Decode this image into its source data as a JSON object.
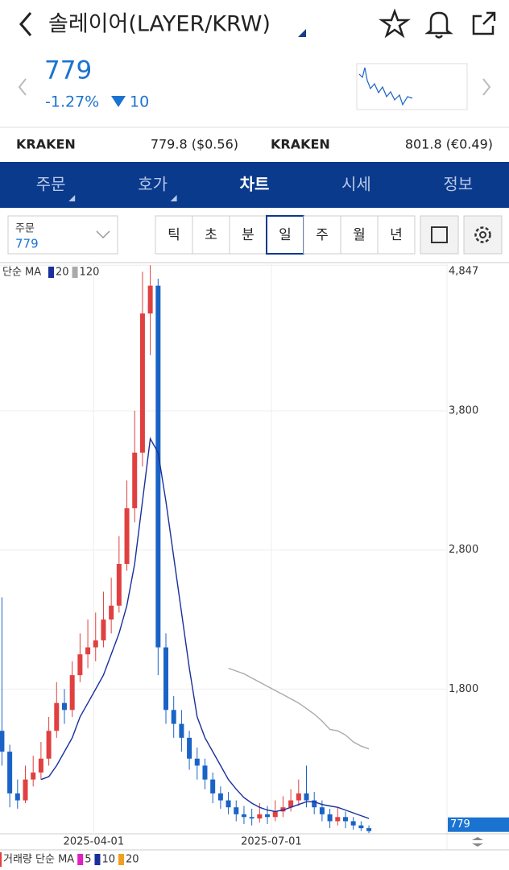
{
  "header": {
    "title": "솔레이어(LAYER/KRW)"
  },
  "quote": {
    "price": "779",
    "change_pct": "-1.27%",
    "change": "10"
  },
  "exchanges": [
    {
      "name": "KRAKEN",
      "price": "779.8 ($0.56)"
    },
    {
      "name": "KRAKEN",
      "price": "801.8 (€0.49)"
    }
  ],
  "tabs": [
    "주문",
    "호가",
    "차트",
    "시세",
    "정보"
  ],
  "toolbar": {
    "order_label": "주문",
    "order_value": "779",
    "periods": [
      "틱",
      "초",
      "분",
      "일",
      "주",
      "월",
      "년"
    ]
  },
  "chart_data": {
    "type": "candlestick",
    "x": [
      "2025-02-13",
      "2025-02-17",
      "2025-02-21",
      "2025-02-25",
      "2025-03-01",
      "2025-03-05",
      "2025-03-09",
      "2025-03-13",
      "2025-03-17",
      "2025-03-21",
      "2025-03-25",
      "2025-03-29",
      "2025-04-02",
      "2025-04-06",
      "2025-04-10",
      "2025-04-14",
      "2025-04-18",
      "2025-04-22",
      "2025-04-26",
      "2025-04-30",
      "2025-05-04",
      "2025-05-08",
      "2025-05-12",
      "2025-05-16",
      "2025-05-20",
      "2025-05-24",
      "2025-05-28",
      "2025-06-01",
      "2025-06-05",
      "2025-06-09",
      "2025-06-13",
      "2025-06-17",
      "2025-06-21",
      "2025-06-25",
      "2025-06-29",
      "2025-07-03",
      "2025-07-07",
      "2025-07-11",
      "2025-07-15",
      "2025-07-19",
      "2025-07-23",
      "2025-07-27",
      "2025-07-31",
      "2025-08-04",
      "2025-08-08",
      "2025-08-12",
      "2025-08-16",
      "2025-08-20"
    ],
    "open": [
      1500,
      1350,
      1050,
      1000,
      1150,
      1200,
      1300,
      1500,
      1700,
      1650,
      1900,
      2050,
      2100,
      2150,
      2300,
      2400,
      2700,
      3100,
      3500,
      4500,
      4700,
      2100,
      1650,
      1550,
      1450,
      1300,
      1250,
      1150,
      1050,
      1000,
      950,
      900,
      880,
      870,
      900,
      880,
      920,
      950,
      1000,
      1050,
      1000,
      950,
      900,
      850,
      880,
      850,
      820,
      800
    ],
    "high": [
      2460,
      1400,
      1150,
      1250,
      1320,
      1420,
      1600,
      1850,
      1800,
      2000,
      2200,
      2300,
      2350,
      2500,
      2600,
      2900,
      3300,
      3800,
      4800,
      4847,
      4750,
      2200,
      1750,
      1650,
      1500,
      1380,
      1300,
      1200,
      1100,
      1060,
      1000,
      960,
      940,
      980,
      960,
      1000,
      1030,
      1080,
      1150,
      1250,
      1060,
      1000,
      940,
      950,
      920,
      880,
      850,
      820
    ],
    "low": [
      1250,
      950,
      940,
      980,
      1100,
      1150,
      1250,
      1450,
      1550,
      1600,
      1850,
      1950,
      2000,
      2100,
      2200,
      2350,
      2650,
      3000,
      3400,
      4200,
      1900,
      1550,
      1450,
      1350,
      1220,
      1150,
      1080,
      980,
      940,
      900,
      850,
      830,
      820,
      840,
      830,
      850,
      880,
      920,
      960,
      950,
      900,
      850,
      800,
      820,
      800,
      790,
      780,
      765
    ],
    "close": [
      1350,
      1050,
      1000,
      1150,
      1200,
      1300,
      1500,
      1700,
      1650,
      1900,
      2050,
      2100,
      2150,
      2300,
      2400,
      2700,
      3100,
      3500,
      4500,
      4700,
      2100,
      1650,
      1550,
      1450,
      1300,
      1250,
      1150,
      1050,
      1000,
      950,
      900,
      880,
      870,
      900,
      880,
      920,
      950,
      1000,
      1050,
      1000,
      950,
      900,
      850,
      880,
      850,
      820,
      800,
      779
    ],
    "up_color": "#e0403f",
    "down_color": "#1a63c6",
    "legend_title": "단순 MA",
    "series": [
      {
        "name": "20",
        "color": "#1a2f9c",
        "values": [
          null,
          null,
          null,
          null,
          null,
          1150,
          1170,
          1250,
          1350,
          1450,
          1600,
          1700,
          1800,
          1900,
          2050,
          2200,
          2400,
          2700,
          3150,
          3600,
          3500,
          3150,
          2750,
          2350,
          1950,
          1600,
          1450,
          1350,
          1250,
          1150,
          1080,
          1020,
          980,
          950,
          930,
          920,
          930,
          950,
          970,
          990,
          990,
          970,
          960,
          950,
          930,
          910,
          890,
          870
        ]
      },
      {
        "name": "120",
        "color": "#aaaaaa",
        "values": [
          null,
          null,
          null,
          null,
          null,
          null,
          null,
          null,
          null,
          null,
          null,
          null,
          null,
          null,
          null,
          null,
          null,
          null,
          null,
          null,
          null,
          null,
          null,
          null,
          null,
          null,
          null,
          null,
          null,
          1950,
          1930,
          1910,
          1880,
          1850,
          1820,
          1790,
          1760,
          1730,
          1700,
          1660,
          1620,
          1570,
          1510,
          1500,
          1470,
          1420,
          1390,
          1370
        ]
      }
    ],
    "xlim": [
      "2025-02-12",
      "2025-09-29"
    ],
    "xticks": [
      "2025-04-01",
      "2025-07-01"
    ],
    "ylim": [
      760,
      4860
    ],
    "yticks": [
      {
        "value": 4847,
        "label": "4,847"
      },
      {
        "value": 3800,
        "label": "3,800"
      },
      {
        "value": 2800,
        "label": "2,800"
      },
      {
        "value": 1800,
        "label": "1,800"
      }
    ],
    "grid": true,
    "volume_legend": {
      "title": "거래량 단순 MA",
      "items": [
        {
          "name": "5",
          "color": "#e020c0"
        },
        {
          "name": "10",
          "color": "#1a2f9c"
        },
        {
          "name": "20",
          "color": "#f0a020"
        }
      ]
    }
  }
}
